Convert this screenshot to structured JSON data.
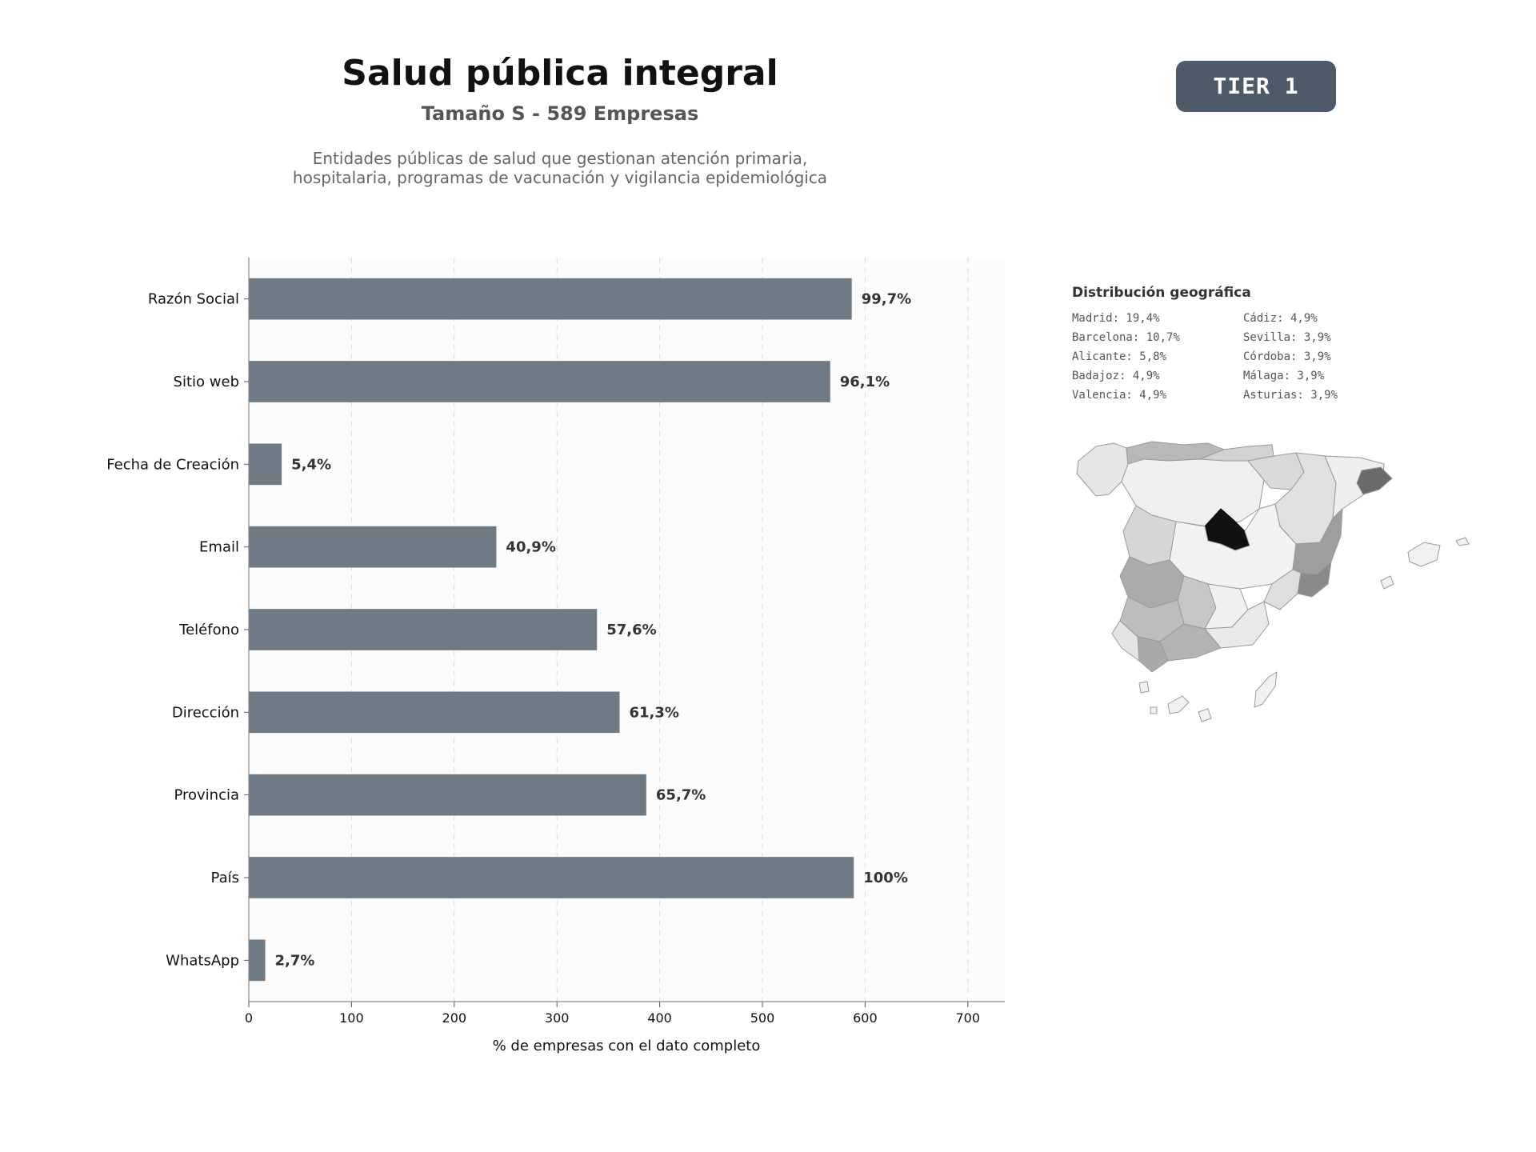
{
  "header": {
    "title": "Salud pública integral",
    "subtitle": "Tamaño S - 589 Empresas",
    "description_line1": "Entidades públicas de salud que gestionan atención primaria,",
    "description_line2": "hospitalaria, programas de vacunación y vigilancia epidemiológica",
    "tier_badge": "TIER 1"
  },
  "chart_data": {
    "type": "bar",
    "orientation": "horizontal",
    "categories": [
      "Razón Social",
      "Sitio web",
      "Fecha de Creación",
      "Email",
      "Teléfono",
      "Dirección",
      "Provincia",
      "País",
      "WhatsApp"
    ],
    "values": [
      587,
      566,
      32,
      241,
      339,
      361,
      387,
      589,
      16
    ],
    "data_labels": [
      "99,7%",
      "96,1%",
      "5,4%",
      "40,9%",
      "57,6%",
      "61,3%",
      "65,7%",
      "100%",
      "2,7%"
    ],
    "xlabel": "% de empresas con el dato completo",
    "ylabel": "",
    "xlim": [
      0,
      736
    ],
    "xticks": [
      0,
      100,
      200,
      300,
      400,
      500,
      600,
      700
    ],
    "grid": "vertical dashed",
    "bar_color": "#6e7a84"
  },
  "geo": {
    "title": "Distribución geográfica",
    "entries": [
      "Madrid: 19,4%",
      "Cádiz: 4,9%",
      "Barcelona: 10,7%",
      "Sevilla: 3,9%",
      "Alicante: 5,8%",
      "Córdoba: 3,9%",
      "Badajoz: 4,9%",
      "Málaga: 3,9%",
      "Valencia: 4,9%",
      "Asturias: 3,9%"
    ]
  }
}
